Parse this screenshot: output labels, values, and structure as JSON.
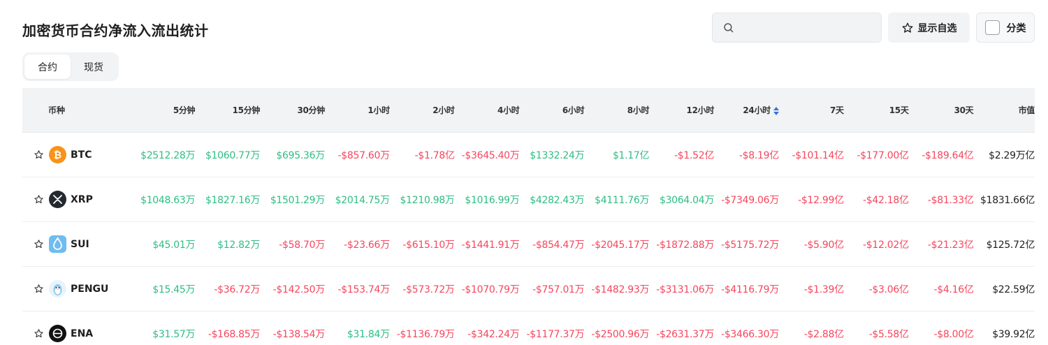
{
  "page_title": "加密货币合约净流入流出统计",
  "search": {
    "placeholder": "",
    "value": ""
  },
  "watchlist_label": "显示自选",
  "category_label": "分类",
  "market_tabs": [
    {
      "label": "合约",
      "active": true
    },
    {
      "label": "现货",
      "active": false
    }
  ],
  "table": {
    "coin_header": "币种",
    "columns": [
      "5分钟",
      "15分钟",
      "30分钟",
      "1小时",
      "2小时",
      "4小时",
      "6小时",
      "8小时",
      "12小时",
      "24小时",
      "7天",
      "15天",
      "30天",
      "市值"
    ],
    "sorted_column": "24小时",
    "rows": [
      {
        "symbol": "BTC",
        "icon": "btc-icon",
        "values": [
          "$2512.28万",
          "$1060.77万",
          "$695.36万",
          "-$857.60万",
          "-$1.78亿",
          "-$3645.40万",
          "$1332.24万",
          "$1.17亿",
          "-$1.52亿",
          "-$8.19亿",
          "-$101.14亿",
          "-$177.00亿",
          "-$189.64亿",
          "$2.29万亿"
        ]
      },
      {
        "symbol": "XRP",
        "icon": "xrp-icon",
        "values": [
          "$1048.63万",
          "$1827.16万",
          "$1501.29万",
          "$2014.75万",
          "$1210.98万",
          "$1016.99万",
          "$4282.43万",
          "$4111.76万",
          "$3064.04万",
          "-$7349.06万",
          "-$12.99亿",
          "-$42.18亿",
          "-$81.33亿",
          "$1831.66亿"
        ]
      },
      {
        "symbol": "SUI",
        "icon": "sui-icon",
        "values": [
          "$45.01万",
          "$12.82万",
          "-$58.70万",
          "-$23.66万",
          "-$615.10万",
          "-$1441.91万",
          "-$854.47万",
          "-$2045.17万",
          "-$1872.88万",
          "-$5175.72万",
          "-$5.90亿",
          "-$12.02亿",
          "-$21.23亿",
          "$125.72亿"
        ]
      },
      {
        "symbol": "PENGU",
        "icon": "pengu-icon",
        "values": [
          "$15.45万",
          "-$36.72万",
          "-$142.50万",
          "-$153.74万",
          "-$573.72万",
          "-$1070.79万",
          "-$757.01万",
          "-$1482.93万",
          "-$3131.06万",
          "-$4116.79万",
          "-$1.39亿",
          "-$3.06亿",
          "-$4.16亿",
          "$22.59亿"
        ]
      },
      {
        "symbol": "ENA",
        "icon": "ena-icon",
        "values": [
          "$31.57万",
          "-$168.85万",
          "-$138.54万",
          "$31.84万",
          "-$1136.79万",
          "-$342.24万",
          "-$1177.37万",
          "-$2500.96万",
          "-$2631.37万",
          "-$3466.30万",
          "-$2.88亿",
          "-$5.58亿",
          "-$8.00亿",
          "$39.92亿"
        ]
      }
    ]
  },
  "colors": {
    "positive": "#2ebd85",
    "negative": "#f6465d",
    "header_bg": "#f1f3f5"
  }
}
